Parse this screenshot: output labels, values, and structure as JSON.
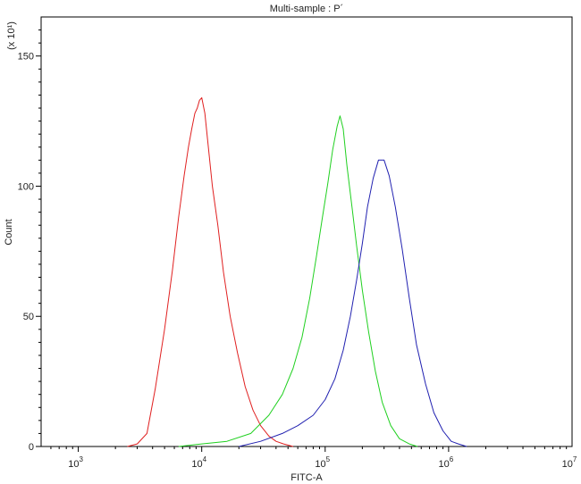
{
  "chart_data": {
    "type": "line",
    "title": "Multi-sample : P´",
    "xlabel": "FITC-A",
    "ylabel": "Count",
    "y_scale_note": "(x 10¹)",
    "x_scale": "log",
    "xlim": [
      500,
      10000000
    ],
    "ylim": [
      0,
      165
    ],
    "grid": false,
    "x_ticks": [
      {
        "value": 1000,
        "base": "10",
        "exp": "3"
      },
      {
        "value": 10000,
        "base": "10",
        "exp": "4"
      },
      {
        "value": 100000,
        "base": "10",
        "exp": "5"
      },
      {
        "value": 1000000,
        "base": "10",
        "exp": "6"
      },
      {
        "value": 10000000,
        "base": "10",
        "exp": "7"
      }
    ],
    "y_ticks": [
      {
        "value": 0,
        "label": "0"
      },
      {
        "value": 50,
        "label": "50"
      },
      {
        "value": 100,
        "label": "100"
      },
      {
        "value": 150,
        "label": "150"
      }
    ],
    "series": [
      {
        "color": "#e02020",
        "x": [
          2500,
          3000,
          3600,
          4200,
          5000,
          5800,
          6500,
          7200,
          7800,
          8300,
          8800,
          9200,
          9600,
          10000,
          10600,
          11200,
          12200,
          13500,
          15000,
          17000,
          19500,
          22500,
          26000,
          30000,
          35000,
          40000,
          46000,
          55000
        ],
        "y": [
          0,
          1,
          5,
          22,
          45,
          68,
          88,
          104,
          115,
          122,
          128,
          130,
          133,
          134,
          128,
          117,
          100,
          85,
          67,
          50,
          36,
          23,
          14,
          8,
          4,
          2,
          1,
          0
        ]
      },
      {
        "color": "#20d020",
        "x": [
          6500,
          10000,
          16000,
          25000,
          35000,
          45000,
          55000,
          65000,
          75000,
          85000,
          95000,
          105000,
          115000,
          125000,
          132000,
          140000,
          150000,
          165000,
          180000,
          200000,
          225000,
          255000,
          290000,
          340000,
          400000,
          480000,
          560000
        ],
        "y": [
          0,
          1,
          2,
          5,
          12,
          20,
          30,
          42,
          57,
          73,
          88,
          101,
          114,
          123,
          127,
          122,
          108,
          92,
          77,
          60,
          44,
          29,
          17,
          8,
          3,
          1,
          0
        ]
      },
      {
        "color": "#2020b0",
        "x": [
          20000,
          30000,
          45000,
          60000,
          80000,
          100000,
          120000,
          140000,
          160000,
          180000,
          200000,
          220000,
          245000,
          270000,
          300000,
          330000,
          370000,
          420000,
          480000,
          550000,
          650000,
          760000,
          900000,
          1050000,
          1200000,
          1400000
        ],
        "y": [
          0,
          2,
          5,
          8,
          12,
          18,
          26,
          37,
          50,
          64,
          78,
          92,
          103,
          110,
          110,
          104,
          92,
          76,
          57,
          39,
          24,
          13,
          6,
          2,
          1,
          0
        ]
      }
    ]
  }
}
